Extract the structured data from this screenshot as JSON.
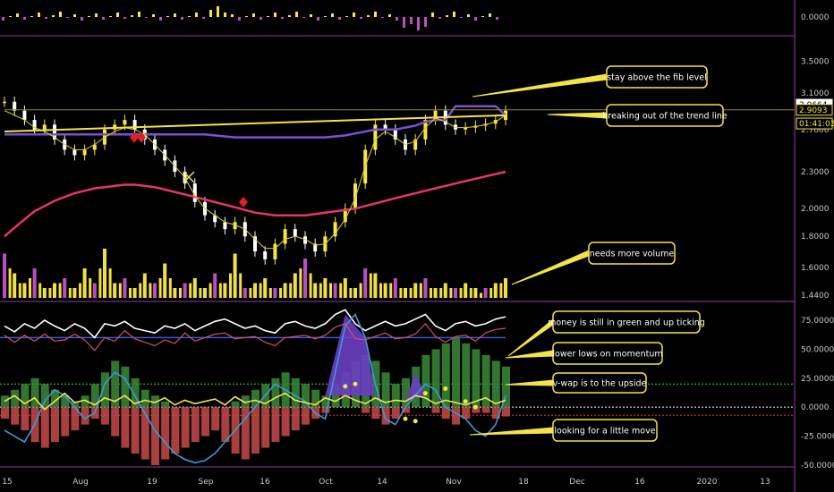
{
  "colors": {
    "background": "#000000",
    "candle_up": "#f5e642",
    "candle_down": "#ffffff",
    "ma_purple": "#7b4fd6",
    "ma_red": "#e8336b",
    "ma_yellow": "#d9cf2a",
    "trendline": "#f2e447",
    "volume_yellow": "#f0e040",
    "volume_purple": "#b84fc4",
    "annotation_border": "#f2e447",
    "panel_divider": "#8a3fa0",
    "osc_green": "#3a8a3a",
    "osc_red": "#c84a4a",
    "osc_purple": "#6a3fc4",
    "osc_blue": "#3a9ad9",
    "osc_white": "#ffffff",
    "osc_yellow": "#f2e447"
  },
  "chart_data": [
    {
      "type": "bar",
      "panel": "top-histogram",
      "y_tick_labels": [
        "0.0000"
      ]
    },
    {
      "type": "line",
      "panel": "price",
      "y_tick_labels": [
        "3.5000",
        "3.1000",
        "2.7000",
        "2.3000",
        "2.0000",
        "1.8000",
        "1.6000",
        "1.4400"
      ],
      "price_tags": [
        {
          "label": "2.9664",
          "bg": "#ffffff",
          "fg": "#000000"
        },
        {
          "label": "2.9093",
          "bg": "#000000",
          "fg": "#f2e447"
        },
        {
          "label": "01:41:03",
          "bg": "#000000",
          "fg": "#f2e447"
        }
      ],
      "x_tick_labels": [
        "15",
        "Aug",
        "19",
        "Sep",
        "16",
        "Oct",
        "14",
        "Nov",
        "18",
        "Dec",
        "16",
        "2020",
        "13"
      ],
      "close_prices": [
        3.0,
        2.9,
        2.8,
        2.7,
        2.75,
        2.6,
        2.5,
        2.45,
        2.5,
        2.55,
        2.7,
        2.75,
        2.8,
        2.7,
        2.6,
        2.5,
        2.4,
        2.3,
        2.2,
        2.05,
        1.95,
        1.9,
        1.85,
        1.9,
        1.8,
        1.7,
        1.65,
        1.75,
        1.85,
        1.8,
        1.75,
        1.7,
        1.8,
        1.9,
        2.0,
        2.2,
        2.5,
        2.75,
        2.7,
        2.6,
        2.5,
        2.6,
        2.8,
        2.9,
        2.75,
        2.7,
        2.72,
        2.74,
        2.76,
        2.8,
        2.9
      ],
      "series": [
        {
          "name": "",
          "color_key": "ma_purple",
          "values": [
            2.65,
            2.65,
            2.65,
            2.65,
            2.65,
            2.65,
            2.65,
            2.65,
            2.65,
            2.65,
            2.65,
            2.65,
            2.65,
            2.65,
            2.65,
            2.65,
            2.65,
            2.65,
            2.65,
            2.65,
            2.65,
            2.64,
            2.63,
            2.62,
            2.62,
            2.62,
            2.62,
            2.62,
            2.62,
            2.62,
            2.62,
            2.62,
            2.62,
            2.63,
            2.64,
            2.66,
            2.68,
            2.7,
            2.7,
            2.7,
            2.72,
            2.74,
            2.78,
            2.8,
            2.8,
            2.95,
            2.95,
            2.95,
            2.95,
            2.95,
            2.85
          ]
        },
        {
          "name": "",
          "color_key": "ma_red",
          "values": [
            1.8,
            1.86,
            1.92,
            1.98,
            2.02,
            2.06,
            2.09,
            2.12,
            2.14,
            2.16,
            2.17,
            2.18,
            2.19,
            2.19,
            2.18,
            2.17,
            2.15,
            2.13,
            2.11,
            2.09,
            2.07,
            2.05,
            2.03,
            2.01,
            1.99,
            1.97,
            1.96,
            1.95,
            1.95,
            1.95,
            1.95,
            1.96,
            1.97,
            1.98,
            1.99,
            2.0,
            2.02,
            2.04,
            2.06,
            2.08,
            2.1,
            2.12,
            2.14,
            2.16,
            2.18,
            2.2,
            2.22,
            2.24,
            2.26,
            2.28,
            2.3
          ]
        },
        {
          "name": "",
          "color_key": "ma_yellow",
          "values": [
            2.9,
            2.85,
            2.8,
            2.72,
            2.68,
            2.62,
            2.55,
            2.5,
            2.5,
            2.55,
            2.62,
            2.68,
            2.72,
            2.7,
            2.65,
            2.55,
            2.45,
            2.35,
            2.25,
            2.1,
            2.0,
            1.95,
            1.9,
            1.88,
            1.85,
            1.78,
            1.72,
            1.72,
            1.78,
            1.8,
            1.78,
            1.74,
            1.75,
            1.82,
            1.92,
            2.08,
            2.35,
            2.6,
            2.68,
            2.62,
            2.55,
            2.58,
            2.72,
            2.82,
            2.78,
            2.72,
            2.72,
            2.73,
            2.75,
            2.78,
            2.85
          ]
        }
      ],
      "trendline": {
        "start": 2.68,
        "end": 2.85
      },
      "fib_level": 2.9093
    },
    {
      "type": "bar",
      "panel": "volume",
      "values": [
        9,
        5,
        3,
        6,
        2,
        3,
        4,
        2,
        6,
        3,
        10,
        3,
        4,
        2,
        5,
        3,
        7,
        2,
        3,
        4,
        2,
        5,
        3,
        9,
        2,
        3,
        4,
        2,
        3,
        5,
        8,
        3,
        4,
        3,
        4,
        2,
        6,
        5,
        3,
        4,
        2,
        3,
        4,
        2,
        3,
        2,
        3,
        2,
        2,
        3,
        4
      ]
    },
    {
      "type": "line",
      "panel": "oscillator",
      "y_tick_labels": [
        "75.0000",
        "50.0000",
        "25.0000",
        "0.0000",
        "-25.0000",
        "-50.0000"
      ],
      "ylim": [
        -50,
        85
      ],
      "series": [
        {
          "name": "",
          "color_key": "osc_white",
          "values": [
            70,
            65,
            72,
            68,
            75,
            70,
            66,
            72,
            68,
            60,
            72,
            70,
            74,
            68,
            66,
            64,
            70,
            68,
            72,
            66,
            70,
            74,
            76,
            72,
            68,
            70,
            66,
            64,
            72,
            74,
            70,
            68,
            72,
            80,
            84,
            72,
            66,
            70,
            74,
            70,
            72,
            76,
            80,
            70,
            66,
            72,
            74,
            70,
            72,
            76,
            78
          ]
        },
        {
          "name": "",
          "color_key": "osc_blue",
          "values": [
            -20,
            -25,
            -30,
            -15,
            5,
            15,
            10,
            0,
            -10,
            -5,
            20,
            30,
            25,
            10,
            -5,
            -20,
            -30,
            -40,
            -45,
            -48,
            -46,
            -40,
            -30,
            -20,
            -10,
            0,
            10,
            20,
            15,
            10,
            5,
            -5,
            -10,
            30,
            70,
            80,
            60,
            20,
            -10,
            -15,
            0,
            10,
            20,
            15,
            0,
            -5,
            -10,
            -20,
            -25,
            -15,
            10
          ]
        },
        {
          "name": "",
          "color_key": "osc_yellow",
          "values": [
            5,
            10,
            3,
            8,
            -2,
            5,
            12,
            4,
            6,
            2,
            8,
            5,
            10,
            3,
            6,
            4,
            8,
            2,
            6,
            3,
            5,
            7,
            2,
            9,
            4,
            6,
            3,
            8,
            12,
            6,
            4,
            2,
            8,
            5,
            10,
            6,
            3,
            8,
            4,
            6,
            5,
            10,
            8,
            3,
            6,
            4,
            2,
            5,
            8,
            3,
            6
          ]
        }
      ],
      "green_hist": [
        10,
        15,
        20,
        25,
        20,
        15,
        10,
        5,
        10,
        20,
        30,
        40,
        35,
        25,
        15,
        10,
        5,
        0,
        0,
        0,
        0,
        0,
        0,
        5,
        10,
        15,
        20,
        25,
        30,
        25,
        20,
        15,
        10,
        20,
        30,
        40,
        45,
        40,
        30,
        20,
        25,
        35,
        45,
        50,
        55,
        60,
        55,
        50,
        45,
        40,
        35
      ],
      "red_hist": [
        -10,
        -15,
        -20,
        -30,
        -35,
        -30,
        -25,
        -20,
        -15,
        -10,
        -15,
        -25,
        -35,
        -40,
        -45,
        -50,
        -45,
        -40,
        -35,
        -30,
        -25,
        -20,
        -30,
        -40,
        -45,
        -40,
        -35,
        -30,
        -25,
        -20,
        -15,
        -10,
        -5,
        0,
        0,
        0,
        -5,
        -10,
        -15,
        -10,
        -5,
        0,
        0,
        -5,
        -10,
        -15,
        -10,
        -5,
        -5,
        -10,
        -8
      ]
    }
  ],
  "annotations": [
    {
      "id": "fib",
      "text": "stay above the fib level"
    },
    {
      "id": "trend",
      "text": "breaking out of the trend line"
    },
    {
      "id": "volume",
      "text": "needs more volume"
    },
    {
      "id": "money",
      "text": "money is still in green and up ticking"
    },
    {
      "id": "momentum",
      "text": "lower lows on momentum"
    },
    {
      "id": "vwap",
      "text": "v-wap is to the upside"
    },
    {
      "id": "move",
      "text": "looking for a little move"
    }
  ]
}
